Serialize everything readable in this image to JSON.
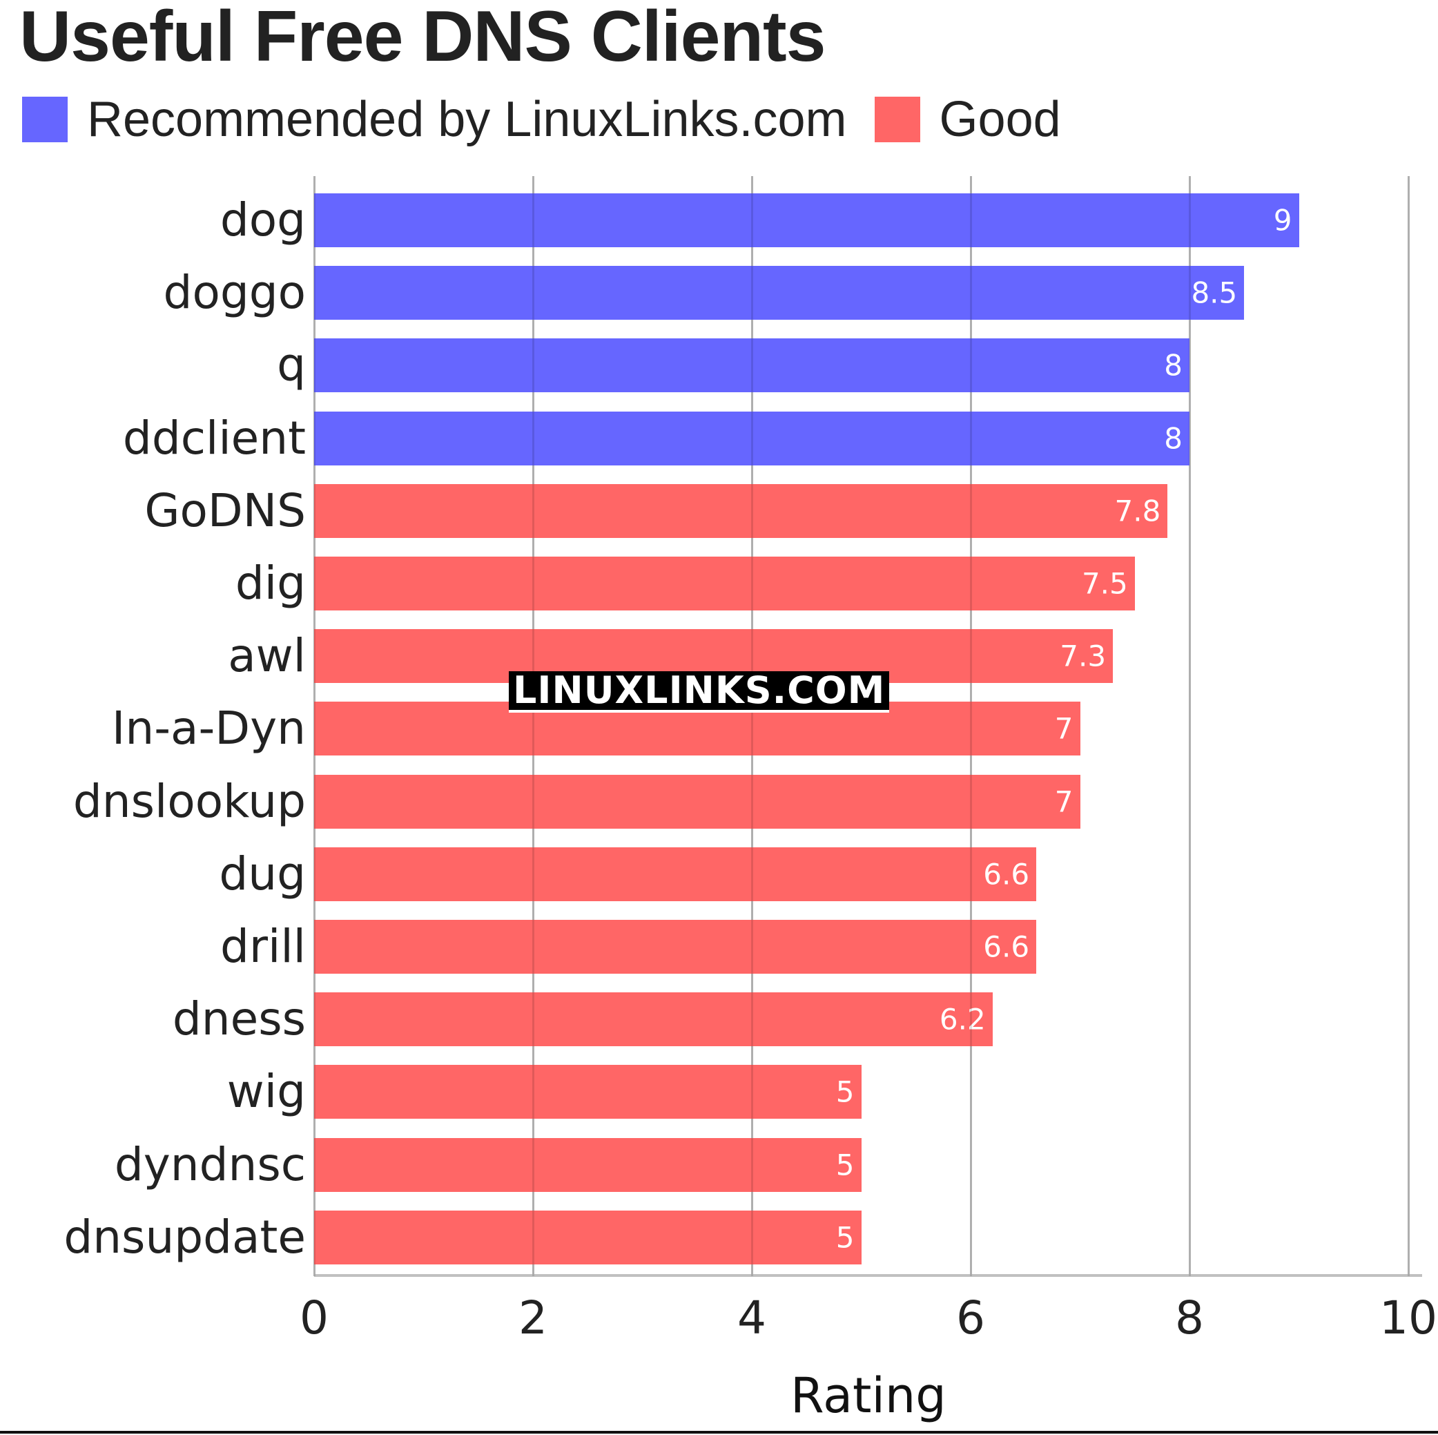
{
  "title": "Useful Free DNS Clients",
  "legend": [
    {
      "label": "Recommended by LinuxLinks.com",
      "color": "#6666ff"
    },
    {
      "label": "Good",
      "color": "#ff6666"
    }
  ],
  "watermark": "LINUXLINKS.COM",
  "chart_data": {
    "type": "bar",
    "orientation": "horizontal",
    "title": "Useful Free DNS Clients",
    "xlabel": "Rating",
    "ylabel": "",
    "xlim": [
      0,
      10
    ],
    "xticks": [
      "0",
      "2",
      "4",
      "6",
      "8",
      "10"
    ],
    "grid": true,
    "legend_position": "top-left",
    "categories": [
      "dog",
      "doggo",
      "q",
      "ddclient",
      "GoDNS",
      "dig",
      "awl",
      "In-a-Dyn",
      "dnslookup",
      "dug",
      "drill",
      "dness",
      "wig",
      "dyndnsc",
      "dnsupdate"
    ],
    "values": [
      9,
      8.5,
      8,
      8,
      7.8,
      7.5,
      7.3,
      7,
      7,
      6.6,
      6.6,
      6.2,
      5,
      5,
      5
    ],
    "value_labels": [
      "9",
      "8.5",
      "8",
      "8",
      "7.8",
      "7.5",
      "7.3",
      "7",
      "7",
      "6.6",
      "6.6",
      "6.2",
      "5",
      "5",
      "5"
    ],
    "series_membership": [
      "Recommended by LinuxLinks.com",
      "Recommended by LinuxLinks.com",
      "Recommended by LinuxLinks.com",
      "Recommended by LinuxLinks.com",
      "Good",
      "Good",
      "Good",
      "Good",
      "Good",
      "Good",
      "Good",
      "Good",
      "Good",
      "Good",
      "Good"
    ],
    "colors": [
      "#6666ff",
      "#6666ff",
      "#6666ff",
      "#6666ff",
      "#ff6666",
      "#ff6666",
      "#ff6666",
      "#ff6666",
      "#ff6666",
      "#ff6666",
      "#ff6666",
      "#ff6666",
      "#ff6666",
      "#ff6666",
      "#ff6666"
    ]
  }
}
